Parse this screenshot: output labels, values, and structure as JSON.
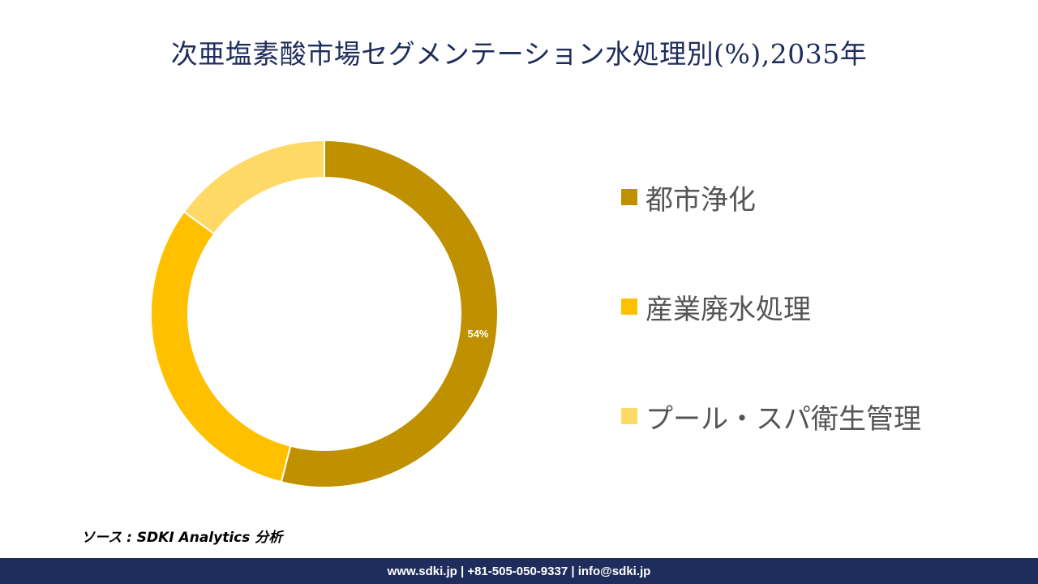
{
  "title": "次亜塩素酸市場セグメンテーション水処理別(%),2035年",
  "chart_data": {
    "type": "pie",
    "variant": "donut",
    "title": "次亜塩素酸市場セグメンテーション水処理別(%),2035年",
    "series": [
      {
        "name": "都市浄化",
        "value": 54,
        "color": "#bf9000",
        "label": "54%"
      },
      {
        "name": "産業廃水処理",
        "value": 31,
        "color": "#ffc000",
        "label": ""
      },
      {
        "name": "プール・スパ衛生管理",
        "value": 15,
        "color": "#ffd966",
        "label": ""
      }
    ],
    "legend_position": "right"
  },
  "source": "ソース : SDKI Analytics 分析",
  "footer": {
    "text": "www.sdki.jp | +81-505-050-9337 | info@sdki.jp",
    "background": "#1f2d5c"
  },
  "colors": {
    "title": "#1f2d5c",
    "legend_text": "#555555"
  }
}
